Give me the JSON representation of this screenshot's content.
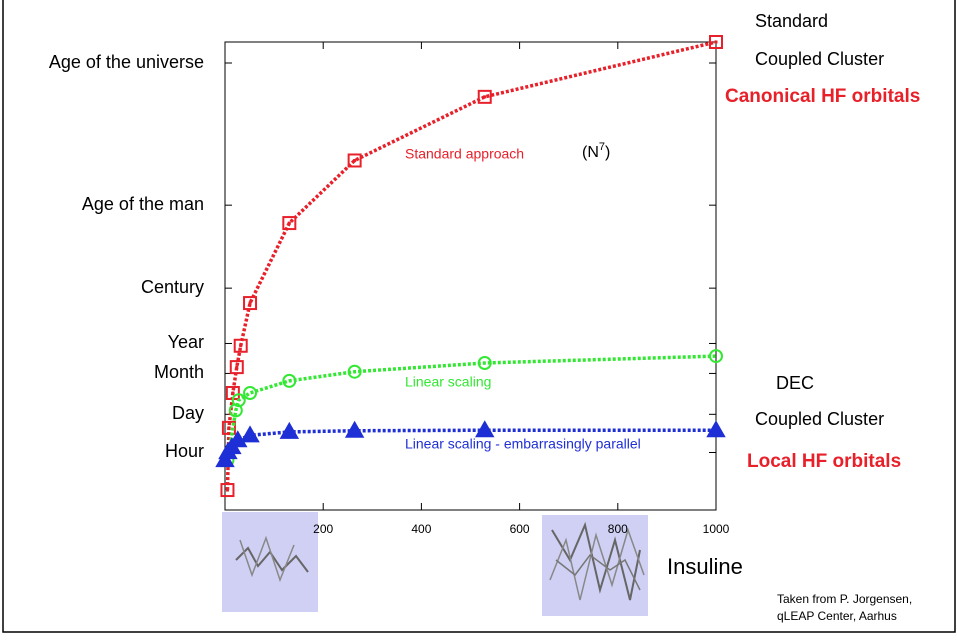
{
  "chart_data": {
    "type": "line",
    "ylog": true,
    "xlim": [
      0,
      1000
    ],
    "xticks": [
      200,
      400,
      600,
      800,
      1000
    ],
    "ylim": [
      30,
      2.5e+18
    ],
    "yticks": [
      {
        "value": 3600,
        "label": "Hour"
      },
      {
        "value": 86400,
        "label": "Day"
      },
      {
        "value": 2600000,
        "label": "Month"
      },
      {
        "value": 31500000,
        "label": "Year"
      },
      {
        "value": 3150000000,
        "label": "Century"
      },
      {
        "value": 3150000000000,
        "label": "Age of the man"
      },
      {
        "value": 435000000000000000,
        "label": "Age of the universe"
      }
    ],
    "series": [
      {
        "name": "Standard approach",
        "color": "#e8202a",
        "marker": "square",
        "x": [
          5,
          8,
          16,
          24,
          32,
          51,
          131,
          264,
          529,
          1000
        ],
        "values": [
          158,
          28000,
          510000,
          4400000,
          26000000,
          910000000,
          710000000000,
          130000000000000,
          26000000000000000,
          2500000000000000000
        ]
      },
      {
        "name": "Linear scaling",
        "color": "#33e833",
        "marker": "circle",
        "x": [
          5,
          22,
          28,
          51,
          131,
          264,
          529,
          1000
        ],
        "values": [
          1900,
          120000,
          280000,
          510000,
          1400000,
          3000000,
          6200000,
          11000000
        ]
      },
      {
        "name": "Linear scaling - embarrasingly parallel",
        "color": "#1f2fd6",
        "marker": "triangle",
        "x": [
          0,
          6,
          14,
          26,
          51,
          131,
          264,
          529,
          1000
        ],
        "values": [
          1900,
          3700,
          5600,
          10000,
          15000,
          20000,
          22000,
          23000,
          23000
        ]
      }
    ],
    "scaling_note": {
      "open": "(N",
      "power": "7",
      "close": ")"
    },
    "right_labels": {
      "standard_1": "Standard",
      "standard_2": "Coupled Cluster",
      "standard_3": "Canonical HF orbitals",
      "dec_1": "DEC",
      "dec_2": "Coupled Cluster",
      "dec_3": "Local HF orbitals"
    },
    "molecule_label": "Insuline",
    "credit": [
      "Taken from P. Jorgensen,",
      "qLEAP Center, Aarhus"
    ]
  }
}
